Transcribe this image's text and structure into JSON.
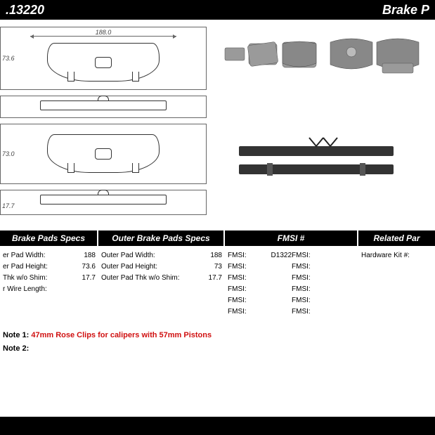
{
  "header": {
    "part_number": ".13220",
    "category": "Brake P"
  },
  "diagram": {
    "pad1": {
      "width_label": "188.0",
      "height_label": "73.6"
    },
    "pad2": {
      "height_label": "73.0"
    },
    "side_view": {
      "thickness_label": "17.7"
    }
  },
  "spec_headers": {
    "inner": "Brake Pads Specs",
    "outer": "Outer Brake Pads Specs",
    "fmsi": "FMSI #",
    "related": "Related Par"
  },
  "inner_specs": [
    {
      "label": "er Pad Width:",
      "value": "188"
    },
    {
      "label": "er Pad Height:",
      "value": "73.6"
    },
    {
      "label": "Thk w/o Shim:",
      "value": "17.7"
    },
    {
      "label": "r Wire Length:",
      "value": ""
    }
  ],
  "outer_specs": [
    {
      "label": "Outer Pad Width:",
      "value": "188"
    },
    {
      "label": "Outer Pad Height:",
      "value": "73"
    },
    {
      "label": "Outer Pad Thk w/o Shim:",
      "value": "17.7"
    }
  ],
  "fmsi": {
    "left": [
      {
        "label": "FMSI:",
        "value": "D1322"
      },
      {
        "label": "FMSI:",
        "value": ""
      },
      {
        "label": "FMSI:",
        "value": ""
      },
      {
        "label": "FMSI:",
        "value": ""
      },
      {
        "label": "FMSI:",
        "value": ""
      },
      {
        "label": "FMSI:",
        "value": ""
      }
    ],
    "right": [
      {
        "label": "FMSI:",
        "value": ""
      },
      {
        "label": "FMSI:",
        "value": ""
      },
      {
        "label": "FMSI:",
        "value": ""
      },
      {
        "label": "FMSI:",
        "value": ""
      },
      {
        "label": "FMSI:",
        "value": ""
      },
      {
        "label": "FMSI:",
        "value": ""
      }
    ]
  },
  "related": [
    {
      "label": "Hardware Kit #:",
      "value": ""
    }
  ],
  "notes": [
    {
      "label": "Note 1:",
      "text": "47mm Rose Clips for calipers with 57mm Pistons"
    },
    {
      "label": "Note 2:",
      "text": ""
    }
  ],
  "colors": {
    "header_bg": "#000000",
    "header_fg": "#ffffff",
    "note_highlight": "#d01010",
    "diagram_stroke": "#333333"
  }
}
